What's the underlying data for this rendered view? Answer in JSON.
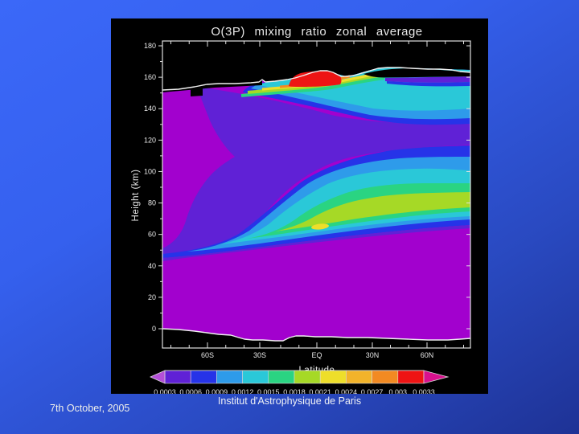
{
  "slide": {
    "date_text": "7th October, 2005",
    "institution": "Institut d'Astrophysique de Paris",
    "background_top": "#3b68f8",
    "background_bottom": "#1e3295"
  },
  "chart": {
    "title": "O(3P) mixing ratio zonal average",
    "xlabel": "Latitude",
    "ylabel": "Height (km)",
    "x_ticks": [
      "60S",
      "30S",
      "EQ",
      "30N",
      "60N"
    ],
    "y_ticks": [
      0,
      20,
      40,
      60,
      80,
      100,
      120,
      140,
      160,
      180
    ]
  },
  "palette": {
    "background": "#a201ce",
    "violet": "#6021d6",
    "blue": "#2633e8",
    "sky": "#2e9bea",
    "cyan": "#2ac8d8",
    "green": "#2ad482",
    "lime": "#a6d926",
    "yellow": "#eede2a",
    "orange_light": "#f2b32a",
    "orange": "#f28a22",
    "red": "#ee1414",
    "below_range_arrow": "#b44fd8",
    "above_range_arrow": "#d9118e",
    "frame": "#e0e0e0"
  },
  "chart_data": {
    "type": "filled_contour",
    "title": "O(3P) mixing ratio zonal average",
    "xlabel": "Latitude",
    "ylabel": "Height (km)",
    "x_tick_labels": [
      "60S",
      "30S",
      "EQ",
      "30N",
      "60N"
    ],
    "y_tick_values_km": [
      0,
      20,
      40,
      60,
      80,
      100,
      120,
      140,
      160,
      180
    ],
    "x_range": [
      "90S",
      "90N"
    ],
    "y_range_km": [
      0,
      180
    ],
    "levels": [
      0.0003,
      0.0006,
      0.0009,
      0.0012,
      0.0015,
      0.0018,
      0.0021,
      0.0024,
      0.0027,
      0.003,
      0.0033
    ],
    "colorbar_labels": [
      "0.0003",
      "0.0006",
      "0.0009",
      "0.0012",
      "0.0015",
      "0.0018",
      "0.0021",
      "0.0024",
      "0.0027",
      "0.003",
      "0.0033"
    ],
    "colorbar_segment_colors": [
      "#6021d6",
      "#2633e8",
      "#2e9bea",
      "#2ac8d8",
      "#2ad482",
      "#a6d926",
      "#eede2a",
      "#f2b32a",
      "#f28a22",
      "#ee1414"
    ],
    "features": [
      {
        "name": "below-range background",
        "value": "< 0.0003",
        "extent": "surface to ~65 km at all latitudes, and up to ~150 km poleward of ~55S"
      },
      {
        "name": "lower maximum layer",
        "value": "0.0018-0.0021 peak (~0.0021 locally)",
        "extent": "~78-90 km, strongest from equator to 60N, weakening toward 60S-90S"
      },
      {
        "name": "mid-altitude minimum tongue",
        "value": "0.0003-0.0006",
        "extent": "~100-140 km tongue extending from ~45S across to 90N, centered ~115 km"
      },
      {
        "name": "upper maximum at model top",
        "value": "> 0.003 (red patch)",
        "extent": "~150-158 km near the equator; 0.0021-0.0027 bands elsewhere along top boundary"
      },
      {
        "name": "model top boundary line",
        "extent": "white line varying ~150-163 km with latitude"
      },
      {
        "name": "surface terrain line",
        "extent": "white line near 0 km with slight topographic dips"
      }
    ]
  }
}
